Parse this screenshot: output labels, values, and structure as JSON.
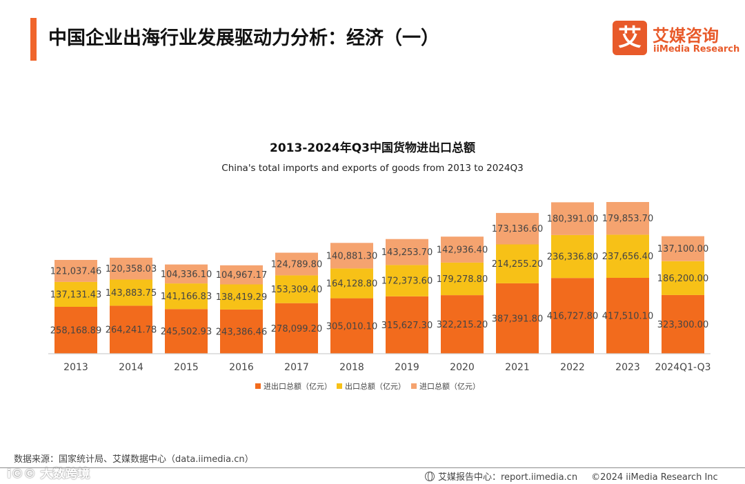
{
  "page": {
    "title": "中国企业出海行业发展驱动力分析：经济（一）"
  },
  "brand": {
    "mark": "艾",
    "name_cn": "艾媒咨询",
    "name_en": "iiMedia Research"
  },
  "colors": {
    "accent": "#f0652b",
    "series": [
      "#f26b1d",
      "#f7c117",
      "#f5a36f"
    ]
  },
  "chart_data": {
    "type": "bar",
    "stacked": true,
    "title": "2013-2024年Q3中国货物进出口总额",
    "subtitle": "China's total imports and exports of goods from 2013 to 2024Q3",
    "categories": [
      "2013",
      "2014",
      "2015",
      "2016",
      "2017",
      "2018",
      "2019",
      "2020",
      "2021",
      "2022",
      "2023",
      "2024Q1-Q3"
    ],
    "series": [
      {
        "name": "进出口总额（亿元）",
        "values": [
          258168.89,
          264241.78,
          245502.93,
          243386.46,
          278099.2,
          305010.1,
          315627.3,
          322215.2,
          387391.8,
          416727.8,
          417510.1,
          323300.0
        ],
        "labels": [
          "258,168.89",
          "264,241.78",
          "245,502.93",
          "243,386.46",
          "278,099.20",
          "305,010.10",
          "315,627.30",
          "322,215.20",
          "387,391.80",
          "416,727.80",
          "417,510.10",
          "323,300.00"
        ]
      },
      {
        "name": "出口总额（亿元）",
        "values": [
          137131.43,
          143883.75,
          141166.83,
          138419.29,
          153309.4,
          164128.8,
          172373.6,
          179278.8,
          214255.2,
          236336.8,
          237656.4,
          186200.0
        ],
        "labels": [
          "137,131.43",
          "143,883.75",
          "141,166.83",
          "138,419.29",
          "153,309.40",
          "164,128.80",
          "172,373.60",
          "179,278.80",
          "214,255.20",
          "236,336.80",
          "237,656.40",
          "186,200.00"
        ]
      },
      {
        "name": "进口总额（亿元）",
        "values": [
          121037.46,
          120358.03,
          104336.1,
          104967.17,
          124789.8,
          140881.3,
          143253.7,
          142936.4,
          173136.6,
          180391.0,
          179853.7,
          137100.0
        ],
        "labels": [
          "121,037.46",
          "120,358.03",
          "104,336.10",
          "104,967.17",
          "124,789.80",
          "140,881.30",
          "143,253.70",
          "142,936.40",
          "173,136.60",
          "180,391.00",
          "179,853.70",
          "137,100.00"
        ]
      }
    ],
    "legend_position": "bottom-center",
    "grid": false
  },
  "source": "数据来源：国家统计局、艾媒数据中心（data.iimedia.cn）",
  "watermark": "i©© 大数跨境",
  "footer": {
    "center": "艾媒报告中心：report.iimedia.cn",
    "copyright": "©2024  iiMedia Research  Inc"
  }
}
